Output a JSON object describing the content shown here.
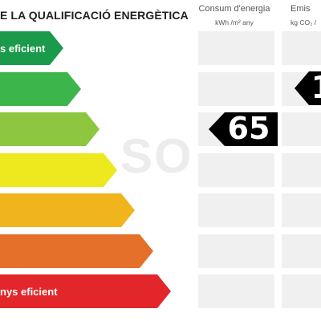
{
  "header": {
    "title": "E LA QUALIFICACIÓ ENERGÈTICA",
    "energy_label": "Consum d'energia",
    "energy_unit": "kWh /m² any",
    "emissions_label": "Emis",
    "emissions_unit": "kg CO₂ /"
  },
  "scale": {
    "bars": [
      {
        "label": "s eficient",
        "color": "#1a9a4a"
      },
      {
        "label": "",
        "color": "#3cb54a"
      },
      {
        "label": "",
        "color": "#8dc63f"
      },
      {
        "label": "",
        "color": "#eee81f"
      },
      {
        "label": "",
        "color": "#f0b51d"
      },
      {
        "label": "",
        "color": "#e4702a"
      },
      {
        "label": "nys eficient",
        "color": "#e2262a"
      }
    ]
  },
  "rating": {
    "energy_value": "65",
    "emissions_value": "1"
  },
  "watermark": "SO"
}
